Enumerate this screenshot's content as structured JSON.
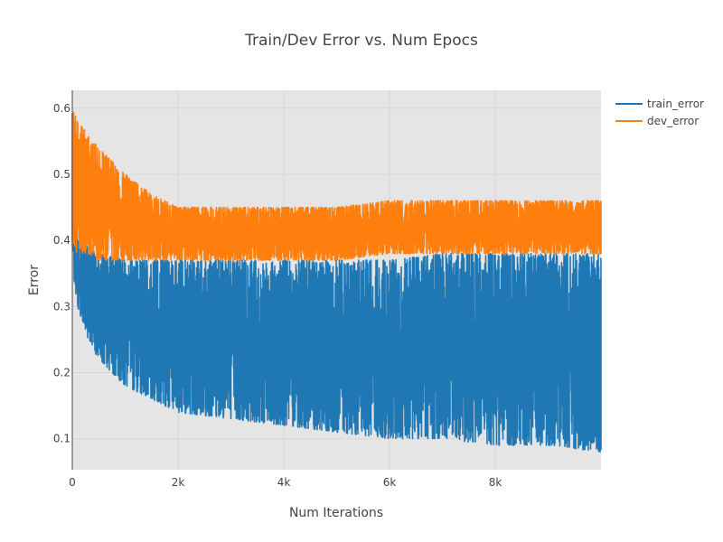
{
  "chart_data": {
    "type": "line",
    "title": "Train/Dev Error vs. Num Epocs",
    "xlabel": "Num Iterations",
    "ylabel": "Error",
    "xlim": [
      0,
      10000
    ],
    "ylim": [
      0.053,
      0.627
    ],
    "x_ticks": [
      {
        "value": 0,
        "label": "0"
      },
      {
        "value": 2000,
        "label": "2k"
      },
      {
        "value": 4000,
        "label": "4k"
      },
      {
        "value": 6000,
        "label": "6k"
      },
      {
        "value": 8000,
        "label": "8k"
      }
    ],
    "y_ticks": [
      {
        "value": 0.1,
        "label": "0.1"
      },
      {
        "value": 0.2,
        "label": "0.2"
      },
      {
        "value": 0.3,
        "label": "0.3"
      },
      {
        "value": 0.4,
        "label": "0.4"
      },
      {
        "value": 0.5,
        "label": "0.5"
      },
      {
        "value": 0.6,
        "label": "0.6"
      }
    ],
    "grid": true,
    "legend_position": "top-right",
    "series": [
      {
        "name": "train_error",
        "color": "#1f77b4",
        "x": [
          0,
          100,
          300,
          500,
          1000,
          1500,
          2000,
          3000,
          4000,
          5000,
          6000,
          7000,
          8000,
          9000,
          10000
        ],
        "lower": [
          0.36,
          0.3,
          0.25,
          0.22,
          0.18,
          0.16,
          0.14,
          0.13,
          0.12,
          0.11,
          0.1,
          0.1,
          0.09,
          0.09,
          0.08
        ],
        "upper": [
          0.6,
          0.4,
          0.39,
          0.38,
          0.37,
          0.37,
          0.37,
          0.37,
          0.37,
          0.37,
          0.37,
          0.38,
          0.38,
          0.38,
          0.38
        ]
      },
      {
        "name": "dev_error",
        "color": "#ff7f0e",
        "x": [
          0,
          100,
          300,
          500,
          1000,
          1500,
          2000,
          3000,
          4000,
          5000,
          6000,
          7000,
          8000,
          9000,
          10000
        ],
        "lower": [
          0.39,
          0.38,
          0.38,
          0.37,
          0.37,
          0.37,
          0.37,
          0.37,
          0.37,
          0.37,
          0.38,
          0.38,
          0.38,
          0.38,
          0.38
        ],
        "upper": [
          0.6,
          0.58,
          0.56,
          0.54,
          0.5,
          0.47,
          0.45,
          0.45,
          0.45,
          0.45,
          0.46,
          0.46,
          0.46,
          0.46,
          0.46
        ]
      }
    ]
  }
}
